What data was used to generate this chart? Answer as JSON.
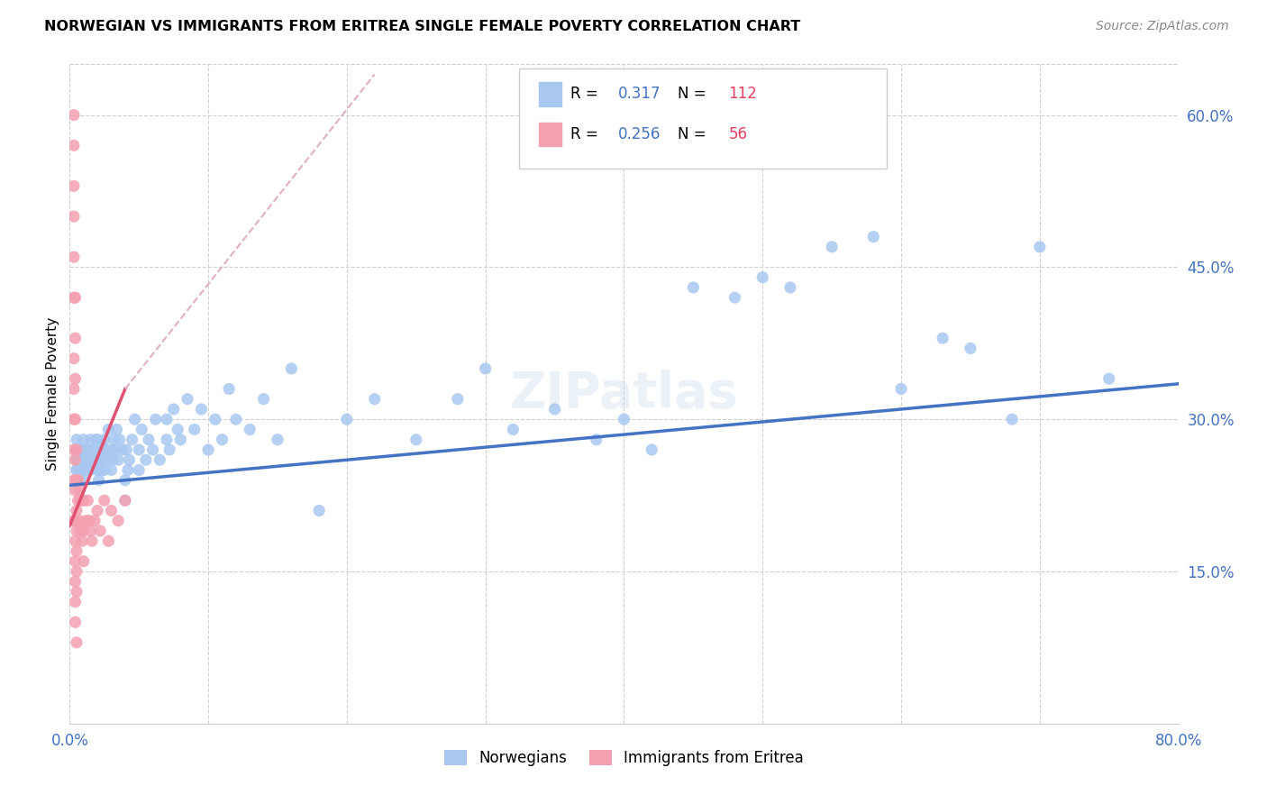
{
  "title": "NORWEGIAN VS IMMIGRANTS FROM ERITREA SINGLE FEMALE POVERTY CORRELATION CHART",
  "source": "Source: ZipAtlas.com",
  "ylabel": "Single Female Poverty",
  "xlim": [
    0,
    0.8
  ],
  "ylim": [
    0,
    0.65
  ],
  "xtick_positions": [
    0.0,
    0.1,
    0.2,
    0.3,
    0.4,
    0.5,
    0.6,
    0.7,
    0.8
  ],
  "xticklabels": [
    "0.0%",
    "",
    "",
    "",
    "",
    "",
    "",
    "",
    "80.0%"
  ],
  "yticks_right": [
    0.0,
    0.15,
    0.3,
    0.45,
    0.6
  ],
  "yticklabels_right": [
    "",
    "15.0%",
    "30.0%",
    "45.0%",
    "60.0%"
  ],
  "norwegian_color": "#a8c8f0",
  "eritrea_color": "#f4a0b0",
  "trendline_norwegian_color": "#4472c4",
  "trendline_eritrea_color": "#e05070",
  "trendline_eritrea_dashed_color": "#e0b0bc",
  "legend_R1": "0.317",
  "legend_N1": "112",
  "legend_R2": "0.256",
  "legend_N2": "56",
  "R_color": "#4472c4",
  "N_color": "#e84060",
  "norwegian_scatter_x": [
    0.005,
    0.005,
    0.005,
    0.005,
    0.005,
    0.005,
    0.005,
    0.005,
    0.007,
    0.007,
    0.008,
    0.008,
    0.008,
    0.009,
    0.009,
    0.01,
    0.01,
    0.01,
    0.01,
    0.01,
    0.01,
    0.01,
    0.01,
    0.012,
    0.012,
    0.013,
    0.013,
    0.014,
    0.015,
    0.015,
    0.016,
    0.017,
    0.018,
    0.019,
    0.02,
    0.02,
    0.02,
    0.02,
    0.021,
    0.022,
    0.023,
    0.024,
    0.025,
    0.025,
    0.026,
    0.027,
    0.028,
    0.03,
    0.03,
    0.031,
    0.032,
    0.033,
    0.034,
    0.035,
    0.036,
    0.038,
    0.04,
    0.04,
    0.041,
    0.042,
    0.043,
    0.045,
    0.047,
    0.05,
    0.05,
    0.052,
    0.055,
    0.057,
    0.06,
    0.062,
    0.065,
    0.07,
    0.07,
    0.072,
    0.075,
    0.078,
    0.08,
    0.085,
    0.09,
    0.095,
    0.1,
    0.105,
    0.11,
    0.115,
    0.12,
    0.13,
    0.14,
    0.15,
    0.16,
    0.18,
    0.2,
    0.22,
    0.25,
    0.28,
    0.3,
    0.32,
    0.35,
    0.38,
    0.4,
    0.42,
    0.45,
    0.48,
    0.5,
    0.52,
    0.55,
    0.58,
    0.6,
    0.63,
    0.65,
    0.68,
    0.7,
    0.75
  ],
  "norwegian_scatter_y": [
    0.25,
    0.26,
    0.26,
    0.27,
    0.27,
    0.27,
    0.28,
    0.25,
    0.26,
    0.24,
    0.26,
    0.27,
    0.25,
    0.26,
    0.25,
    0.25,
    0.26,
    0.26,
    0.27,
    0.27,
    0.27,
    0.28,
    0.24,
    0.26,
    0.27,
    0.25,
    0.27,
    0.26,
    0.25,
    0.28,
    0.26,
    0.27,
    0.26,
    0.28,
    0.25,
    0.26,
    0.27,
    0.28,
    0.24,
    0.25,
    0.26,
    0.27,
    0.25,
    0.28,
    0.27,
    0.26,
    0.29,
    0.25,
    0.27,
    0.26,
    0.28,
    0.27,
    0.29,
    0.26,
    0.28,
    0.27,
    0.22,
    0.24,
    0.27,
    0.25,
    0.26,
    0.28,
    0.3,
    0.25,
    0.27,
    0.29,
    0.26,
    0.28,
    0.27,
    0.3,
    0.26,
    0.28,
    0.3,
    0.27,
    0.31,
    0.29,
    0.28,
    0.32,
    0.29,
    0.31,
    0.27,
    0.3,
    0.28,
    0.33,
    0.3,
    0.29,
    0.32,
    0.28,
    0.35,
    0.21,
    0.3,
    0.32,
    0.28,
    0.32,
    0.35,
    0.29,
    0.31,
    0.28,
    0.3,
    0.27,
    0.43,
    0.42,
    0.44,
    0.43,
    0.47,
    0.48,
    0.33,
    0.38,
    0.37,
    0.3,
    0.47,
    0.34
  ],
  "eritrea_scatter_x": [
    0.003,
    0.003,
    0.003,
    0.003,
    0.003,
    0.003,
    0.003,
    0.003,
    0.003,
    0.003,
    0.003,
    0.003,
    0.004,
    0.004,
    0.004,
    0.004,
    0.004,
    0.004,
    0.004,
    0.004,
    0.004,
    0.004,
    0.004,
    0.004,
    0.005,
    0.005,
    0.005,
    0.005,
    0.005,
    0.005,
    0.005,
    0.005,
    0.006,
    0.006,
    0.007,
    0.007,
    0.008,
    0.008,
    0.009,
    0.009,
    0.01,
    0.01,
    0.01,
    0.012,
    0.013,
    0.014,
    0.015,
    0.016,
    0.018,
    0.02,
    0.022,
    0.025,
    0.028,
    0.03,
    0.035,
    0.04
  ],
  "eritrea_scatter_y": [
    0.6,
    0.57,
    0.53,
    0.5,
    0.46,
    0.42,
    0.36,
    0.33,
    0.3,
    0.27,
    0.24,
    0.2,
    0.42,
    0.38,
    0.34,
    0.3,
    0.26,
    0.23,
    0.2,
    0.18,
    0.16,
    0.14,
    0.12,
    0.1,
    0.27,
    0.24,
    0.21,
    0.19,
    0.17,
    0.15,
    0.13,
    0.08,
    0.24,
    0.22,
    0.23,
    0.2,
    0.22,
    0.19,
    0.22,
    0.18,
    0.22,
    0.19,
    0.16,
    0.2,
    0.22,
    0.2,
    0.19,
    0.18,
    0.2,
    0.21,
    0.19,
    0.22,
    0.18,
    0.21,
    0.2,
    0.22
  ],
  "background_color": "#ffffff",
  "grid_color": "#d0d0d0",
  "watermark_text": "ZIPatlas",
  "watermark_color": "#c5d8ea",
  "watermark_alpha": 0.35,
  "trendline_nor_x0": 0.0,
  "trendline_nor_y0": 0.235,
  "trendline_nor_x1": 0.8,
  "trendline_nor_y1": 0.335,
  "trendline_eri_solid_x0": 0.0,
  "trendline_eri_solid_y0": 0.195,
  "trendline_eri_solid_x1": 0.04,
  "trendline_eri_solid_y1": 0.33,
  "trendline_eri_dash_x1": 0.22,
  "trendline_eri_dash_y1": 0.64
}
